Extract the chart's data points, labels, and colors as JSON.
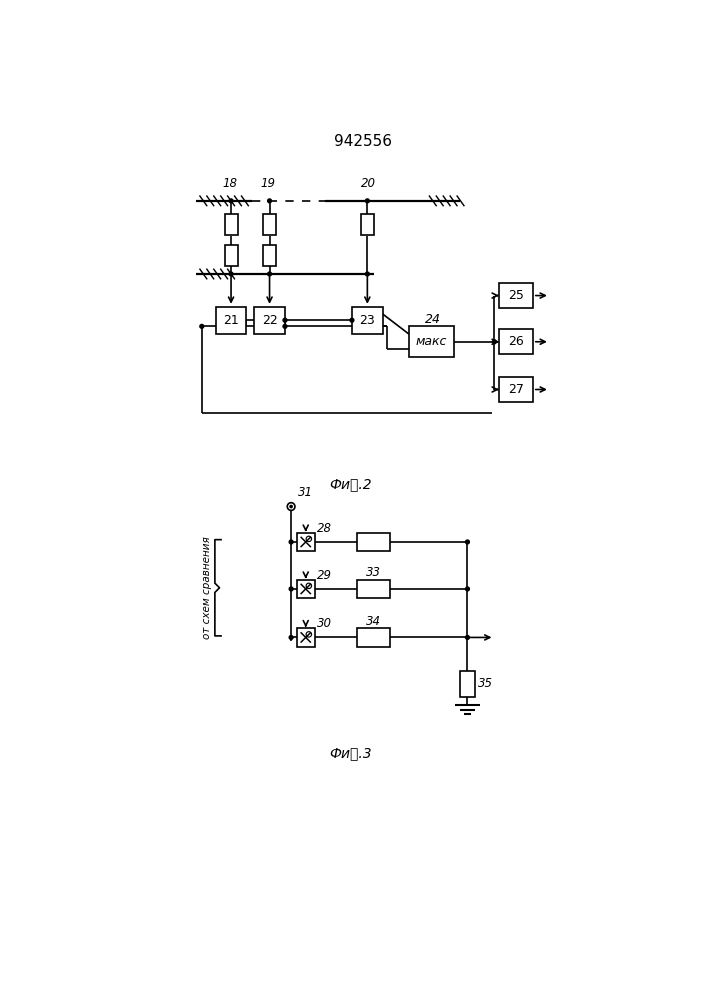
{
  "title": "942556",
  "bg_color": "#ffffff",
  "lw": 1.2,
  "fig2_caption": "Фи␲.2",
  "fig3_caption": "Фи␲.3",
  "label_ot": "от схем сравнения"
}
